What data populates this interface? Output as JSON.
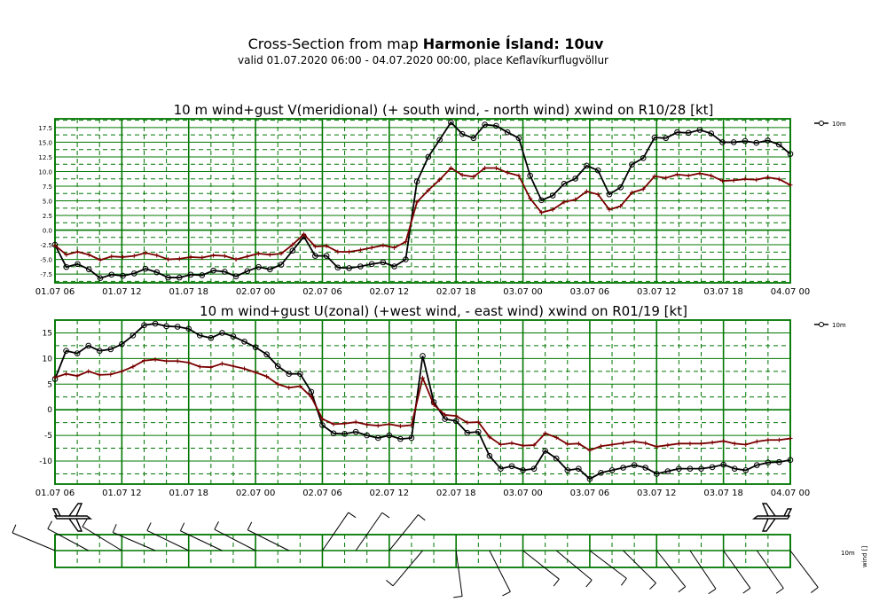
{
  "header": {
    "title_prefix": "Cross-Section from map",
    "title_bold": "Harmonie Ísland: 10uv",
    "subtitle": "valid 01.07.2020 06:00 - 04.07.2020 00:00, place Keflavíkurflugvöllur"
  },
  "colors": {
    "grid": "#007700",
    "series_10m": "#000000",
    "series_wind": "#7a0000"
  },
  "chart_data": [
    {
      "type": "line",
      "title": "10 m wind+gust V(meridional) (+ south wind, - north wind) xwind on R10/28 [kt]",
      "x_tick_labels": [
        "01.07 06",
        "01.07 12",
        "01.07 18",
        "02.07 00",
        "02.07 06",
        "02.07 12",
        "02.07 18",
        "03.07 00",
        "03.07 06",
        "03.07 12",
        "03.07 18",
        "04.07 00"
      ],
      "x_hours_from_start": [
        0,
        6,
        12,
        18,
        24,
        30,
        36,
        42,
        48,
        54,
        60,
        66
      ],
      "y_tick_labels": [
        "17.5",
        "15.0",
        "12.5",
        "10.0",
        "7.5",
        "5.0",
        "2.5",
        "0.0",
        "-2.5",
        "-5.0",
        "-7.5"
      ],
      "ylim": [
        -9,
        19
      ],
      "legend": "10m",
      "series": [
        {
          "name": "10m",
          "marker": "circle",
          "values": [
            -2.5,
            -6.3,
            -5.8,
            -6.7,
            -8.2,
            -7.6,
            -7.8,
            -7.4,
            -6.6,
            -7.2,
            -8.1,
            -8.1,
            -7.6,
            -7.7,
            -6.9,
            -7.1,
            -7.9,
            -7.0,
            -6.3,
            -6.7,
            -5.9,
            -3.5,
            -1.1,
            -4.4,
            -4.4,
            -6.4,
            -6.5,
            -6.2,
            -5.8,
            -5.5,
            -6.2,
            -5.0,
            8.3,
            12.5,
            15.4,
            18.4,
            16.4,
            15.7,
            18.0,
            17.8,
            16.7,
            15.7,
            9.3,
            5.1,
            5.9,
            7.9,
            8.8,
            11.0,
            10.2,
            6.1,
            7.3,
            11.2,
            12.3,
            15.8,
            15.7,
            16.7,
            16.6,
            17.1,
            16.5,
            15.0,
            15.0,
            15.2,
            14.9,
            15.3,
            14.6,
            13.0
          ]
        },
        {
          "marker": "plus",
          "values": [
            -2.6,
            -4.2,
            -3.7,
            -4.2,
            -5.1,
            -4.5,
            -4.6,
            -4.4,
            -3.9,
            -4.3,
            -5.0,
            -4.9,
            -4.6,
            -4.7,
            -4.3,
            -4.4,
            -5.0,
            -4.5,
            -4.0,
            -4.2,
            -4.0,
            -2.5,
            -0.7,
            -2.8,
            -2.7,
            -3.7,
            -3.7,
            -3.4,
            -3.0,
            -2.6,
            -3.0,
            -2.0,
            4.8,
            6.8,
            8.6,
            10.6,
            9.4,
            9.1,
            10.6,
            10.6,
            9.8,
            9.3,
            5.4,
            3.0,
            3.5,
            4.8,
            5.2,
            6.6,
            6.1,
            3.5,
            4.1,
            6.4,
            7.0,
            9.2,
            8.9,
            9.5,
            9.3,
            9.7,
            9.3,
            8.4,
            8.5,
            8.7,
            8.6,
            9.0,
            8.7,
            7.7
          ]
        }
      ]
    },
    {
      "type": "line",
      "title": "10 m wind+gust U(zonal) (+west wind, - east wind) xwind on R01/19 [kt]",
      "x_tick_labels": [
        "01.07 06",
        "01.07 12",
        "01.07 18",
        "02.07 00",
        "02.07 06",
        "02.07 12",
        "02.07 18",
        "03.07 00",
        "03.07 06",
        "03.07 12",
        "03.07 18",
        "04.07 00"
      ],
      "x_hours_from_start": [
        0,
        6,
        12,
        18,
        24,
        30,
        36,
        42,
        48,
        54,
        60,
        66
      ],
      "y_tick_labels": [
        "15",
        "10",
        "5",
        "0",
        "-5",
        "-10"
      ],
      "ylim": [
        -14.5,
        17.5
      ],
      "legend": "10m",
      "series": [
        {
          "name": "10m",
          "marker": "circle",
          "values": [
            6.0,
            11.5,
            11.0,
            12.5,
            11.5,
            11.8,
            12.8,
            14.5,
            16.5,
            16.8,
            16.3,
            16.2,
            15.8,
            14.5,
            14.0,
            15.0,
            14.3,
            13.3,
            12.2,
            10.8,
            8.5,
            7.0,
            7.0,
            3.5,
            -3.0,
            -4.6,
            -4.7,
            -4.3,
            -5.0,
            -5.5,
            -5.0,
            -5.7,
            -5.5,
            10.5,
            1.5,
            -1.8,
            -2.2,
            -4.5,
            -4.3,
            -9.0,
            -11.5,
            -11.0,
            -11.8,
            -11.5,
            -8.0,
            -9.5,
            -11.8,
            -11.5,
            -13.5,
            -12.3,
            -11.8,
            -11.3,
            -10.8,
            -11.3,
            -12.5,
            -12.0,
            -11.5,
            -11.5,
            -11.5,
            -11.2,
            -10.7,
            -11.5,
            -11.8,
            -10.8,
            -10.3,
            -10.2,
            -9.8
          ]
        },
        {
          "marker": "plus",
          "values": [
            6.3,
            7.0,
            6.6,
            7.5,
            6.8,
            6.9,
            7.5,
            8.4,
            9.6,
            9.8,
            9.5,
            9.5,
            9.2,
            8.4,
            8.3,
            9.0,
            8.5,
            8.0,
            7.3,
            6.5,
            5.0,
            4.3,
            4.6,
            2.5,
            -1.8,
            -2.8,
            -2.7,
            -2.4,
            -2.9,
            -3.1,
            -2.8,
            -3.2,
            -3.0,
            6.2,
            1.0,
            -1.0,
            -1.2,
            -2.5,
            -2.4,
            -5.3,
            -6.8,
            -6.5,
            -7.0,
            -6.9,
            -4.6,
            -5.4,
            -6.7,
            -6.6,
            -7.9,
            -7.1,
            -6.8,
            -6.5,
            -6.2,
            -6.5,
            -7.2,
            -6.9,
            -6.6,
            -6.6,
            -6.6,
            -6.4,
            -6.1,
            -6.6,
            -6.8,
            -6.2,
            -5.9,
            -5.9,
            -5.6
          ]
        }
      ]
    }
  ],
  "wind_panel": {
    "legend_label": "10m",
    "axis_label": "wind []"
  }
}
